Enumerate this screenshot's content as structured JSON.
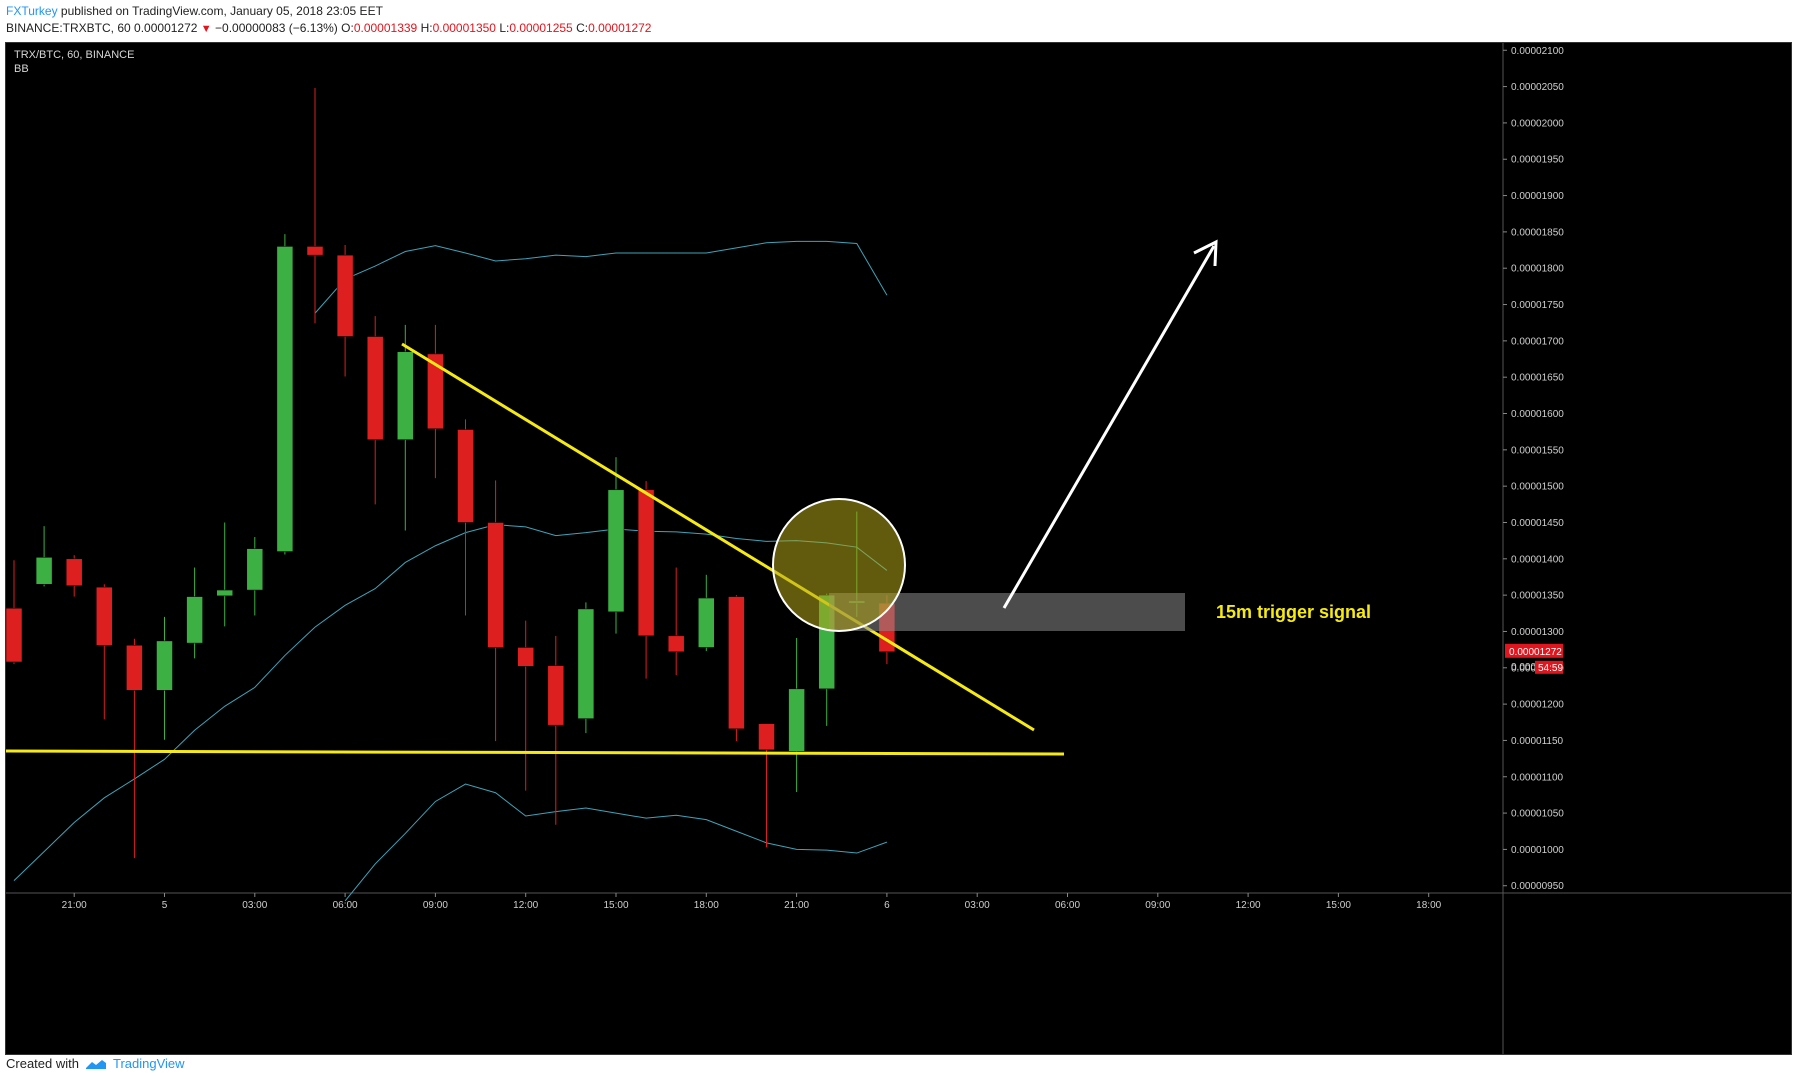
{
  "header": {
    "author": "FXTurkey",
    "published_text": "published on TradingView.com, January 05, 2018 23:05 EET",
    "symbol": "BINANCE:TRXBTC, 60",
    "last_price": "0.00001272",
    "change": "−0.00000083 (−6.13%)",
    "open_label": "O:",
    "open": "0.00001339",
    "high_label": "H:",
    "high": "0.00001350",
    "low_label": "L:",
    "low": "0.00001255",
    "close_label": "C:",
    "close": "0.00001272"
  },
  "footer": {
    "created_with": "Created with",
    "brand": "TradingView"
  },
  "chart_data": {
    "type": "candlestick",
    "title": "TRX/BTC, 60, BINANCE",
    "indicator": "BB",
    "ylim": [
      9.4e-06,
      2.11e-05
    ],
    "y_ticks": [
      "0.00002100",
      "0.00002050",
      "0.00002000",
      "0.00001950",
      "0.00001900",
      "0.00001850",
      "0.00001800",
      "0.00001750",
      "0.00001700",
      "0.00001650",
      "0.00001600",
      "0.00001550",
      "0.00001500",
      "0.00001450",
      "0.00001400",
      "0.00001350",
      "0.00001300",
      "0.00001250",
      "0.00001200",
      "0.00001150",
      "0.00001100",
      "0.00001050",
      "0.00001000",
      "0.00000950"
    ],
    "x_ticks": [
      {
        "label": "21:00",
        "bar": 2
      },
      {
        "label": "5",
        "bar": 5
      },
      {
        "label": "03:00",
        "bar": 8
      },
      {
        "label": "06:00",
        "bar": 11
      },
      {
        "label": "09:00",
        "bar": 14
      },
      {
        "label": "12:00",
        "bar": 17
      },
      {
        "label": "15:00",
        "bar": 20
      },
      {
        "label": "18:00",
        "bar": 23
      },
      {
        "label": "21:00",
        "bar": 26
      },
      {
        "label": "6",
        "bar": 29
      },
      {
        "label": "03:00",
        "bar": 32
      },
      {
        "label": "06:00",
        "bar": 35
      },
      {
        "label": "09:00",
        "bar": 38
      },
      {
        "label": "12:00",
        "bar": 41
      },
      {
        "label": "15:00",
        "bar": 44
      },
      {
        "label": "18:00",
        "bar": 47
      }
    ],
    "candles": [
      {
        "o": 1.332,
        "h": 1.398,
        "l": 1.255,
        "c": 1.258
      },
      {
        "o": 1.365,
        "h": 1.445,
        "l": 1.362,
        "c": 1.402
      },
      {
        "o": 1.4,
        "h": 1.405,
        "l": 1.348,
        "c": 1.363
      },
      {
        "o": 1.361,
        "h": 1.365,
        "l": 1.179,
        "c": 1.281
      },
      {
        "o": 1.281,
        "h": 1.29,
        "l": 0.988,
        "c": 1.219
      },
      {
        "o": 1.219,
        "h": 1.32,
        "l": 1.151,
        "c": 1.287
      },
      {
        "o": 1.284,
        "h": 1.388,
        "l": 1.263,
        "c": 1.348
      },
      {
        "o": 1.349,
        "h": 1.45,
        "l": 1.307,
        "c": 1.357
      },
      {
        "o": 1.357,
        "h": 1.43,
        "l": 1.322,
        "c": 1.414
      },
      {
        "o": 1.41,
        "h": 1.847,
        "l": 1.406,
        "c": 1.83
      },
      {
        "o": 1.83,
        "h": 2.048,
        "l": 1.724,
        "c": 1.818
      },
      {
        "o": 1.818,
        "h": 1.832,
        "l": 1.651,
        "c": 1.706
      },
      {
        "o": 1.706,
        "h": 1.734,
        "l": 1.475,
        "c": 1.564
      },
      {
        "o": 1.564,
        "h": 1.722,
        "l": 1.439,
        "c": 1.685
      },
      {
        "o": 1.682,
        "h": 1.722,
        "l": 1.511,
        "c": 1.579
      },
      {
        "o": 1.578,
        "h": 1.592,
        "l": 1.322,
        "c": 1.45
      },
      {
        "o": 1.45,
        "h": 1.508,
        "l": 1.149,
        "c": 1.278
      },
      {
        "o": 1.278,
        "h": 1.315,
        "l": 1.081,
        "c": 1.252
      },
      {
        "o": 1.253,
        "h": 1.294,
        "l": 1.034,
        "c": 1.171
      },
      {
        "o": 1.18,
        "h": 1.34,
        "l": 1.16,
        "c": 1.331
      },
      {
        "o": 1.327,
        "h": 1.54,
        "l": 1.297,
        "c": 1.495
      },
      {
        "o": 1.495,
        "h": 1.507,
        "l": 1.235,
        "c": 1.294
      },
      {
        "o": 1.294,
        "h": 1.388,
        "l": 1.24,
        "c": 1.272
      },
      {
        "o": 1.278,
        "h": 1.378,
        "l": 1.273,
        "c": 1.346
      },
      {
        "o": 1.348,
        "h": 1.35,
        "l": 1.149,
        "c": 1.166
      },
      {
        "o": 1.173,
        "h": 1.173,
        "l": 1.003,
        "c": 1.137
      },
      {
        "o": 1.135,
        "h": 1.291,
        "l": 1.079,
        "c": 1.221
      },
      {
        "o": 1.221,
        "h": 1.352,
        "l": 1.17,
        "c": 1.35
      },
      {
        "o": 1.339,
        "h": 1.465,
        "l": 1.32,
        "c": 1.342
      },
      {
        "o": 1.339,
        "h": 1.35,
        "l": 1.255,
        "c": 1.272
      }
    ],
    "value_scale": "1e-5 (values above are ×0.00001 BTC)",
    "bb_upper": [
      null,
      null,
      null,
      null,
      null,
      null,
      null,
      null,
      null,
      null,
      1.738,
      1.785,
      1.803,
      1.823,
      1.831,
      1.821,
      1.81,
      1.813,
      1.818,
      1.816,
      1.821,
      1.821,
      1.821,
      1.821,
      1.828,
      1.835,
      1.837,
      1.837,
      1.834,
      1.763
    ],
    "bb_middle": [
      1.483,
      1.526,
      1.556,
      1.562,
      1.55,
      1.545,
      1.546,
      1.545,
      1.541,
      1.627,
      1.691,
      1.715,
      1.732,
      1.747,
      1.759,
      1.781,
      1.805,
      1.803,
      1.809,
      1.809,
      1.811,
      1.822,
      1.796,
      1.737,
      1.66,
      1.588,
      1.498,
      1.444,
      1.402,
      1.382
    ],
    "bb_lower": [
      0.957,
      0.997,
      1.037,
      1.071,
      1.097,
      1.124,
      1.164,
      1.197,
      1.223,
      1.267,
      1.306,
      1.336,
      1.359,
      1.395,
      1.418,
      1.436,
      1.447,
      1.444,
      1.432,
      1.436,
      1.441,
      1.438,
      1.437,
      1.434,
      1.428,
      1.424,
      1.425,
      1.422,
      1.416,
      1.384
    ],
    "bb_lower_band": [
      null,
      null,
      null,
      null,
      null,
      null,
      null,
      null,
      null,
      null,
      null,
      0.929,
      0.98,
      1.022,
      1.066,
      1.09,
      1.078,
      1.046,
      1.052,
      1.057,
      1.05,
      1.043,
      1.047,
      1.041,
      1.025,
      1.009,
      1.0,
      0.999,
      0.995,
      1.01
    ],
    "current_price_label": "0.00001272",
    "countdown_label": "54:59",
    "annotations": {
      "label": "15m trigger signal"
    }
  }
}
